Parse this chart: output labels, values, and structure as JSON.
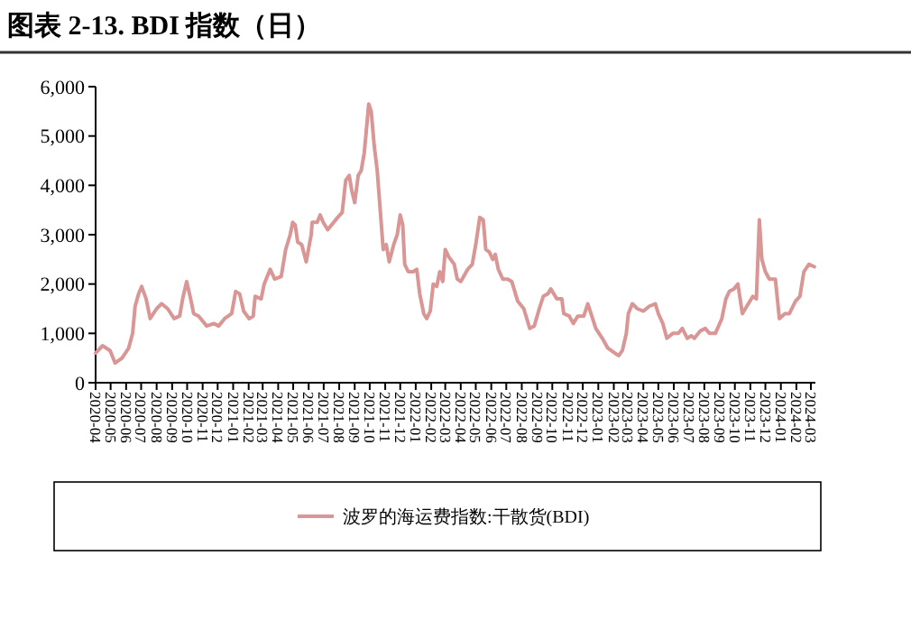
{
  "chart_data": {
    "type": "line",
    "title": "图表 2-13. BDI 指数（日）",
    "xlim": [
      "2020-04-01",
      "2024-03-10"
    ],
    "xticks": [
      "2020-04",
      "2020-05",
      "2020-06",
      "2020-07",
      "2020-08",
      "2020-09",
      "2020-10",
      "2020-11",
      "2020-12",
      "2021-01",
      "2021-02",
      "2021-03",
      "2021-04",
      "2021-05",
      "2021-06",
      "2021-07",
      "2021-08",
      "2021-09",
      "2021-10",
      "2021-11",
      "2021-12",
      "2022-01",
      "2022-02",
      "2022-03",
      "2022-04",
      "2022-05",
      "2022-06",
      "2022-07",
      "2022-08",
      "2022-09",
      "2022-10",
      "2022-11",
      "2022-12",
      "2023-01",
      "2023-02",
      "2023-03",
      "2023-04",
      "2023-05",
      "2023-06",
      "2023-07",
      "2023-08",
      "2023-09",
      "2023-10",
      "2023-11",
      "2023-12",
      "2024-01",
      "2024-02",
      "2024-03"
    ],
    "ylim": [
      0,
      6000
    ],
    "yticks": [
      {
        "value": 0,
        "label": "0"
      },
      {
        "value": 1000,
        "label": "1,000"
      },
      {
        "value": 2000,
        "label": "2,000"
      },
      {
        "value": 3000,
        "label": "3,000"
      },
      {
        "value": 4000,
        "label": "4,000"
      },
      {
        "value": 5000,
        "label": "5,000"
      },
      {
        "value": 6000,
        "label": "6,000"
      }
    ],
    "legend": "bottom",
    "x": [
      "2020-04-01",
      "2020-04-15",
      "2020-04-30",
      "2020-05-10",
      "2020-05-24",
      "2020-06-06",
      "2020-06-14",
      "2020-06-19",
      "2020-06-26",
      "2020-07-02",
      "2020-07-11",
      "2020-07-19",
      "2020-08-01",
      "2020-08-11",
      "2020-08-23",
      "2020-09-05",
      "2020-09-16",
      "2020-09-22",
      "2020-09-30",
      "2020-10-08",
      "2020-10-14",
      "2020-10-24",
      "2020-11-09",
      "2020-11-24",
      "2020-12-03",
      "2020-12-15",
      "2020-12-29",
      "2021-01-06",
      "2021-01-14",
      "2021-01-22",
      "2021-02-02",
      "2021-02-10",
      "2021-02-14",
      "2021-02-26",
      "2021-03-04",
      "2021-03-16",
      "2021-03-25",
      "2021-04-07",
      "2021-04-16",
      "2021-04-25",
      "2021-04-30",
      "2021-05-05",
      "2021-05-10",
      "2021-05-18",
      "2021-05-27",
      "2021-06-06",
      "2021-06-08",
      "2021-06-18",
      "2021-06-24",
      "2021-06-30",
      "2021-07-09",
      "2021-07-17",
      "2021-07-29",
      "2021-08-07",
      "2021-08-14",
      "2021-08-21",
      "2021-08-26",
      "2021-09-01",
      "2021-09-08",
      "2021-09-14",
      "2021-09-20",
      "2021-09-25",
      "2021-09-29",
      "2021-10-04",
      "2021-10-10",
      "2021-10-16",
      "2021-10-22",
      "2021-10-28",
      "2021-11-03",
      "2021-11-09",
      "2021-11-18",
      "2021-11-25",
      "2021-12-01",
      "2021-12-06",
      "2021-12-10",
      "2021-12-17",
      "2021-12-27",
      "2022-01-03",
      "2022-01-09",
      "2022-01-17",
      "2022-01-23",
      "2022-01-30",
      "2022-02-05",
      "2022-02-12",
      "2022-02-18",
      "2022-02-24",
      "2022-03-01",
      "2022-03-08",
      "2022-03-19",
      "2022-03-25",
      "2022-04-01",
      "2022-04-15",
      "2022-04-24",
      "2022-05-01",
      "2022-05-09",
      "2022-05-16",
      "2022-05-21",
      "2022-05-28",
      "2022-06-04",
      "2022-06-09",
      "2022-06-15",
      "2022-06-24",
      "2022-07-04",
      "2022-07-12",
      "2022-07-24",
      "2022-08-05",
      "2022-08-17",
      "2022-08-26",
      "2022-09-05",
      "2022-09-13",
      "2022-09-22",
      "2022-09-28",
      "2022-10-10",
      "2022-10-20",
      "2022-10-24",
      "2022-11-04",
      "2022-11-12",
      "2022-11-21",
      "2022-12-03",
      "2022-12-11",
      "2022-12-19",
      "2022-12-27",
      "2023-01-09",
      "2023-01-20",
      "2023-02-03",
      "2023-02-11",
      "2023-02-18",
      "2023-02-26",
      "2023-03-02",
      "2023-03-10",
      "2023-03-20",
      "2023-04-01",
      "2023-04-13",
      "2023-04-25",
      "2023-05-01",
      "2023-05-10",
      "2023-05-18",
      "2023-05-30",
      "2023-06-10",
      "2023-06-18",
      "2023-06-28",
      "2023-07-06",
      "2023-07-12",
      "2023-07-24",
      "2023-08-03",
      "2023-08-11",
      "2023-08-23",
      "2023-09-05",
      "2023-09-13",
      "2023-09-20",
      "2023-09-29",
      "2023-10-07",
      "2023-10-16",
      "2023-10-25",
      "2023-11-06",
      "2023-11-13",
      "2023-11-19",
      "2023-11-24",
      "2023-12-01",
      "2023-12-09",
      "2023-12-21",
      "2023-12-29",
      "2024-01-09",
      "2024-01-18",
      "2024-01-30",
      "2024-02-08",
      "2024-02-16",
      "2024-02-26",
      "2024-03-08"
    ],
    "series": [
      {
        "name": "波罗的海运费指数:干散货(BDI)",
        "color": "#d99694",
        "values": [
          600,
          750,
          650,
          400,
          500,
          700,
          1000,
          1550,
          1800,
          1950,
          1700,
          1300,
          1500,
          1600,
          1500,
          1300,
          1350,
          1700,
          2050,
          1700,
          1400,
          1350,
          1150,
          1200,
          1150,
          1300,
          1400,
          1850,
          1800,
          1450,
          1300,
          1350,
          1750,
          1700,
          2000,
          2300,
          2100,
          2150,
          2700,
          3000,
          3250,
          3200,
          2850,
          2800,
          2450,
          3000,
          3250,
          3250,
          3400,
          3250,
          3100,
          3200,
          3350,
          3450,
          4100,
          4200,
          3900,
          3650,
          4200,
          4300,
          4650,
          5200,
          5650,
          5500,
          4800,
          4300,
          3500,
          2700,
          2800,
          2450,
          2800,
          3000,
          3400,
          3200,
          2400,
          2250,
          2250,
          2300,
          1800,
          1400,
          1300,
          1450,
          2000,
          1950,
          2250,
          2050,
          2700,
          2550,
          2400,
          2100,
          2050,
          2300,
          2400,
          2800,
          3350,
          3300,
          2700,
          2650,
          2500,
          2600,
          2300,
          2100,
          2100,
          2050,
          1650,
          1500,
          1100,
          1150,
          1500,
          1750,
          1800,
          1900,
          1700,
          1700,
          1400,
          1350,
          1200,
          1350,
          1350,
          1600,
          1350,
          1100,
          900,
          700,
          600,
          550,
          650,
          1000,
          1400,
          1600,
          1500,
          1450,
          1550,
          1600,
          1400,
          1200,
          900,
          1000,
          1000,
          1100,
          900,
          950,
          900,
          1050,
          1100,
          1000,
          1000,
          1300,
          1700,
          1850,
          1900,
          2000,
          1400,
          1550,
          1750,
          1700,
          3300,
          2500,
          2250,
          2100,
          2100,
          1300,
          1400,
          1400,
          1650,
          1750,
          2250,
          2400,
          2350
        ]
      }
    ]
  }
}
